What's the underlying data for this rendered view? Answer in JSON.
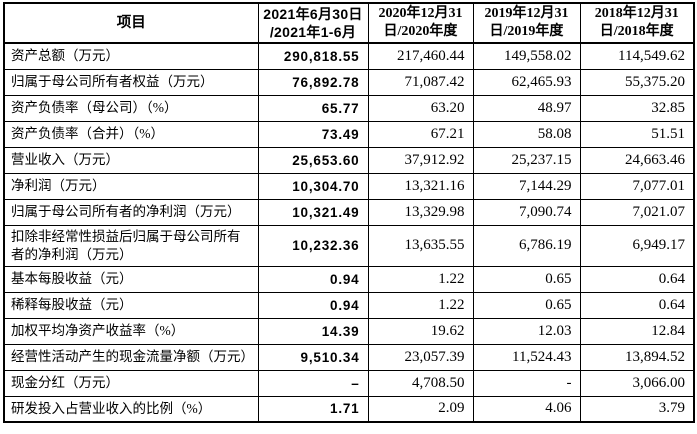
{
  "table": {
    "headers": [
      {
        "line1": "项目",
        "line2": ""
      },
      {
        "line1": "2021年6月30日",
        "line2": "/2021年1-6月"
      },
      {
        "line1": "2020年12月31",
        "line2": "日/2020年度"
      },
      {
        "line1": "2019年12月31",
        "line2": "日/2019年度"
      },
      {
        "line1": "2018年12月31",
        "line2": "日/2018年度"
      }
    ],
    "rows": [
      {
        "label": "资产总额（万元）",
        "label2": "",
        "values": [
          "290,818.55",
          "217,460.44",
          "149,558.02",
          "114,549.62"
        ]
      },
      {
        "label": "归属于母公司所有者权益（万元）",
        "label2": "",
        "values": [
          "76,892.78",
          "71,087.42",
          "62,465.93",
          "55,375.20"
        ]
      },
      {
        "label": "资产负债率（母公司）（%）",
        "label2": "",
        "values": [
          "65.77",
          "63.20",
          "48.97",
          "32.85"
        ]
      },
      {
        "label": "资产负债率（合并）（%）",
        "label2": "",
        "values": [
          "73.49",
          "67.21",
          "58.08",
          "51.51"
        ]
      },
      {
        "label": "营业收入（万元）",
        "label2": "",
        "values": [
          "25,653.60",
          "37,912.92",
          "25,237.15",
          "24,663.46"
        ]
      },
      {
        "label": "净利润（万元）",
        "label2": "",
        "values": [
          "10,304.70",
          "13,321.16",
          "7,144.29",
          "7,077.01"
        ]
      },
      {
        "label": "归属于母公司所有者的净利润（万元）",
        "label2": "",
        "values": [
          "10,321.49",
          "13,329.98",
          "7,090.74",
          "7,021.07"
        ]
      },
      {
        "label": "扣除非经常性损益后归属于母公司所有",
        "label2": "者的净利润（万元）",
        "values": [
          "10,232.36",
          "13,635.55",
          "6,786.19",
          "6,949.17"
        ]
      },
      {
        "label": "基本每股收益（元）",
        "label2": "",
        "values": [
          "0.94",
          "1.22",
          "0.65",
          "0.64"
        ]
      },
      {
        "label": "稀释每股收益（元）",
        "label2": "",
        "values": [
          "0.94",
          "1.22",
          "0.65",
          "0.64"
        ]
      },
      {
        "label": "加权平均净资产收益率（%）",
        "label2": "",
        "values": [
          "14.39",
          "19.62",
          "12.03",
          "12.84"
        ]
      },
      {
        "label": "经营性活动产生的现金流量净额（万元）",
        "label2": "",
        "values": [
          "9,510.34",
          "23,057.39",
          "11,524.43",
          "13,894.52"
        ]
      },
      {
        "label": "现金分红（万元）",
        "label2": "",
        "values": [
          "–",
          "4,708.50",
          "-",
          "3,066.00"
        ]
      },
      {
        "label": "研发投入占营业收入的比例（%）",
        "label2": "",
        "values": [
          "1.71",
          "2.09",
          "4.06",
          "3.79"
        ]
      }
    ]
  },
  "colors": {
    "text": "#000000",
    "border": "#000000",
    "background": "#ffffff"
  }
}
